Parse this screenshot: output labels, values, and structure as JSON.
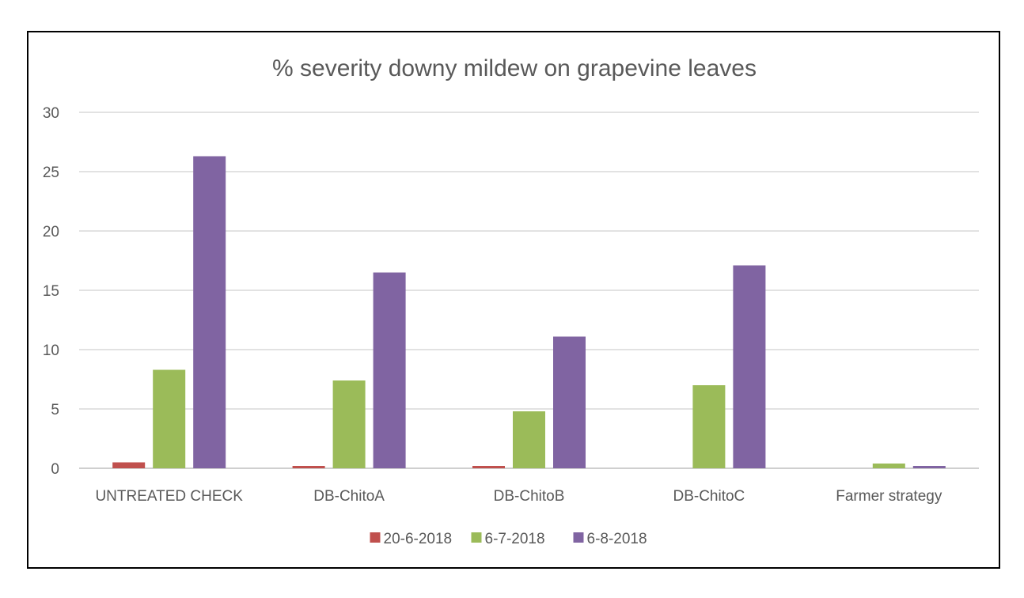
{
  "chart_data": {
    "type": "bar",
    "title": "% severity downy mildew on grapevine leaves",
    "xlabel": "",
    "ylabel": "",
    "categories": [
      "UNTREATED CHECK",
      "DB-ChitoA",
      "DB-ChitoB",
      "DB-ChitoC",
      "Farmer strategy"
    ],
    "ylim": [
      0,
      30
    ],
    "yticks": [
      0,
      5,
      10,
      15,
      20,
      25,
      30
    ],
    "grid": true,
    "legend_position": "bottom",
    "series": [
      {
        "name": "20-6-2018",
        "color": "#c0504d",
        "values": [
          0.5,
          0.2,
          0.2,
          0,
          0
        ]
      },
      {
        "name": "6-7-2018",
        "color": "#9bbb59",
        "values": [
          8.3,
          7.4,
          4.8,
          7.0,
          0.4
        ]
      },
      {
        "name": "6-8-2018",
        "color": "#8064a2",
        "values": [
          26.3,
          16.5,
          11.1,
          17.1,
          0.2
        ]
      }
    ]
  }
}
